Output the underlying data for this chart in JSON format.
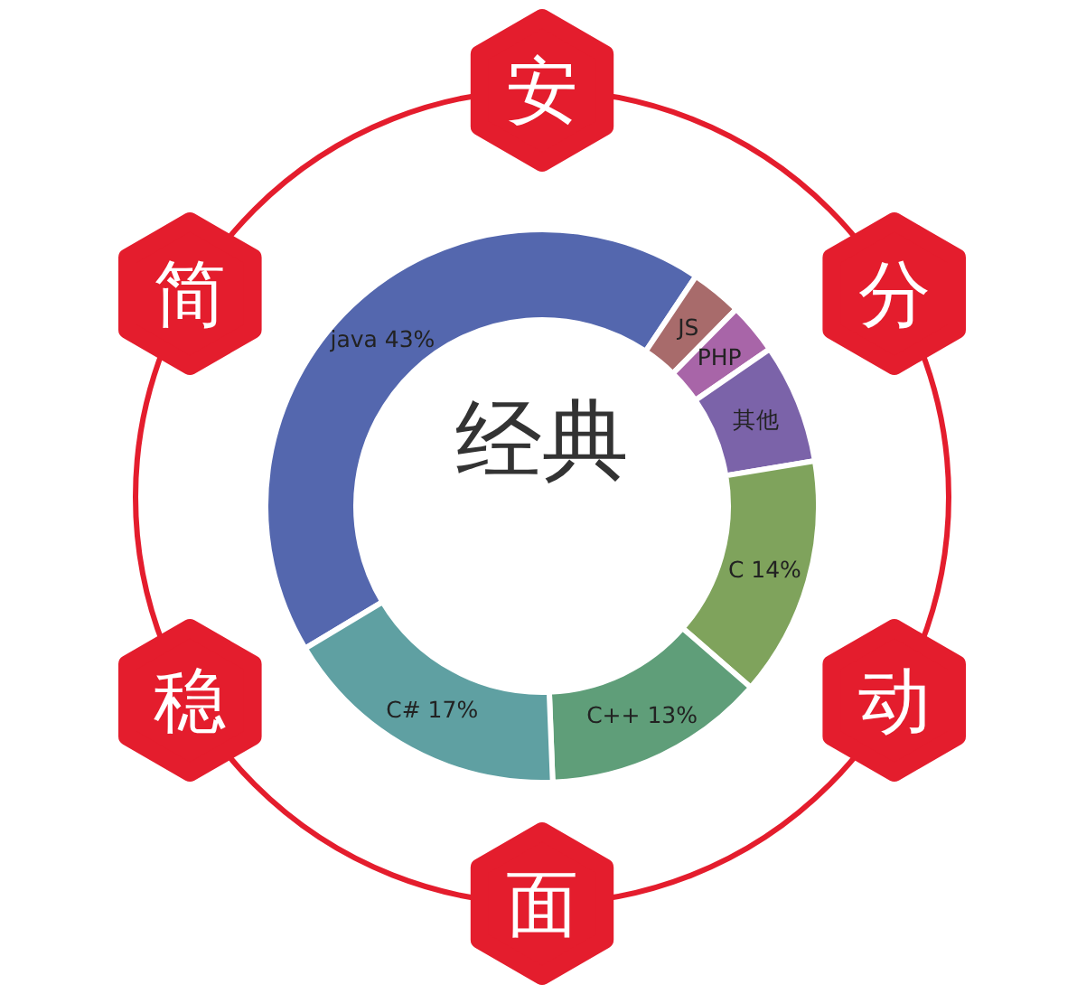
{
  "chart_data": {
    "type": "donut",
    "title": "经典",
    "categories": [
      "java",
      "JS",
      "PHP",
      "其他",
      "C",
      "C++",
      "C#"
    ],
    "values": [
      43,
      3,
      3,
      7,
      14,
      13,
      17
    ],
    "colors": [
      "#5467ae",
      "#a86b6b",
      "#a865a8",
      "#7b63a9",
      "#7fa35c",
      "#5f9e79",
      "#5fa0a2"
    ],
    "value_labels": [
      "43%",
      null,
      null,
      null,
      "14%",
      "13%",
      "17%"
    ],
    "annotations": [
      "安",
      "分",
      "动",
      "面",
      "稳",
      "简"
    ]
  }
}
